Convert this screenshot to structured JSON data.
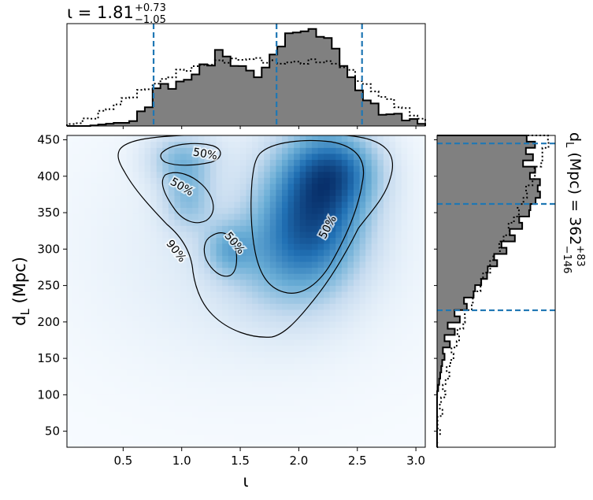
{
  "chart_data": [
    {
      "panel": "top-marginal",
      "type": "histogram",
      "title_main": "ι = 1.81",
      "title_sup": "+0.73",
      "title_sub": "−1.05",
      "xlim": [
        0.02,
        3.08
      ],
      "median": 1.81,
      "interval": [
        0.76,
        2.54
      ],
      "posterior_shape": [
        [
          0.02,
          0.0
        ],
        [
          0.2,
          0.0
        ],
        [
          0.45,
          0.03
        ],
        [
          0.55,
          0.06
        ],
        [
          0.7,
          0.15
        ],
        [
          0.8,
          0.38
        ],
        [
          0.95,
          0.42
        ],
        [
          1.05,
          0.44
        ],
        [
          1.15,
          0.54
        ],
        [
          1.25,
          0.62
        ],
        [
          1.3,
          0.8
        ],
        [
          1.4,
          0.62
        ],
        [
          1.5,
          0.57
        ],
        [
          1.6,
          0.53
        ],
        [
          1.7,
          0.52
        ],
        [
          1.8,
          0.72
        ],
        [
          1.9,
          0.84
        ],
        [
          1.95,
          0.96
        ],
        [
          2.05,
          0.94
        ],
        [
          2.15,
          0.9
        ],
        [
          2.25,
          0.84
        ],
        [
          2.35,
          0.72
        ],
        [
          2.45,
          0.44
        ],
        [
          2.55,
          0.28
        ],
        [
          2.7,
          0.16
        ],
        [
          2.85,
          0.08
        ],
        [
          3.0,
          0.05
        ],
        [
          3.08,
          0.0
        ]
      ],
      "prior_shape": [
        [
          0.02,
          0.01
        ],
        [
          0.2,
          0.06
        ],
        [
          0.4,
          0.18
        ],
        [
          0.55,
          0.28
        ],
        [
          0.7,
          0.36
        ],
        [
          0.85,
          0.45
        ],
        [
          1.0,
          0.54
        ],
        [
          1.2,
          0.6
        ],
        [
          1.4,
          0.64
        ],
        [
          1.6,
          0.66
        ],
        [
          1.8,
          0.62
        ],
        [
          2.0,
          0.62
        ],
        [
          2.2,
          0.64
        ],
        [
          2.4,
          0.58
        ],
        [
          2.55,
          0.42
        ],
        [
          2.7,
          0.3
        ],
        [
          2.85,
          0.2
        ],
        [
          3.0,
          0.1
        ],
        [
          3.08,
          0.05
        ]
      ]
    },
    {
      "panel": "main-2d-density",
      "type": "heatmap",
      "xlabel": "ι",
      "ylabel_main": "d",
      "ylabel_sub": "L",
      "ylabel_unit": " (Mpc)",
      "xlim": [
        0.02,
        3.08
      ],
      "ylim": [
        28,
        456
      ],
      "xticks": [
        "0.5",
        "1.0",
        "1.5",
        "2.0",
        "2.5",
        "3.0"
      ],
      "xtick_values": [
        0.5,
        1.0,
        1.5,
        2.0,
        2.5,
        3.0
      ],
      "yticks": [
        "50",
        "100",
        "150",
        "200",
        "250",
        "300",
        "350",
        "400",
        "450"
      ],
      "ytick_values": [
        50,
        100,
        150,
        200,
        250,
        300,
        350,
        400,
        450
      ],
      "density_peaks": [
        {
          "x": 2.15,
          "y": 365,
          "sigma_x": 0.3,
          "sigma_y": 65,
          "weight": 1.0
        },
        {
          "x": 2.35,
          "y": 410,
          "sigma_x": 0.25,
          "sigma_y": 35,
          "weight": 0.55
        },
        {
          "x": 1.0,
          "y": 425,
          "sigma_x": 0.2,
          "sigma_y": 25,
          "weight": 0.45
        },
        {
          "x": 1.05,
          "y": 370,
          "sigma_x": 0.15,
          "sigma_y": 30,
          "weight": 0.4
        },
        {
          "x": 1.4,
          "y": 300,
          "sigma_x": 0.15,
          "sigma_y": 25,
          "weight": 0.4
        },
        {
          "x": 1.9,
          "y": 290,
          "sigma_x": 0.35,
          "sigma_y": 55,
          "weight": 0.45
        },
        {
          "x": 1.6,
          "y": 300,
          "sigma_x": 0.9,
          "sigma_y": 110,
          "weight": 0.14
        }
      ],
      "contour_labels": [
        {
          "text": "50%",
          "x": 1.2,
          "y": 430,
          "angle": 10
        },
        {
          "text": "50%",
          "x": 1.0,
          "y": 385,
          "angle": 30
        },
        {
          "text": "50%",
          "x": 1.45,
          "y": 308,
          "angle": 50
        },
        {
          "text": "50%",
          "x": 2.25,
          "y": 330,
          "angle": -62
        },
        {
          "text": "90%",
          "x": 0.95,
          "y": 297,
          "angle": 52
        }
      ],
      "contour_levels": [
        "50%",
        "90%"
      ]
    },
    {
      "panel": "right-marginal",
      "type": "histogram",
      "orientation": "horizontal",
      "label_main": "d",
      "label_sub": "L",
      "label_unit": " (Mpc) = 362",
      "label_sup": "+83",
      "label_sub2": "−146",
      "ylim": [
        28,
        456
      ],
      "median": 362,
      "interval": [
        216,
        445
      ],
      "posterior_shape": [
        [
          28,
          0.0
        ],
        [
          100,
          0.0
        ],
        [
          150,
          0.05
        ],
        [
          180,
          0.1
        ],
        [
          200,
          0.14
        ],
        [
          216,
          0.2
        ],
        [
          240,
          0.3
        ],
        [
          260,
          0.4
        ],
        [
          280,
          0.48
        ],
        [
          300,
          0.56
        ],
        [
          320,
          0.64
        ],
        [
          340,
          0.72
        ],
        [
          362,
          0.82
        ],
        [
          380,
          0.88
        ],
        [
          400,
          0.82
        ],
        [
          420,
          0.76
        ],
        [
          440,
          0.8
        ],
        [
          456,
          0.78
        ]
      ],
      "prior_shape": [
        [
          28,
          0.0
        ],
        [
          60,
          0.01
        ],
        [
          100,
          0.05
        ],
        [
          150,
          0.12
        ],
        [
          200,
          0.22
        ],
        [
          250,
          0.36
        ],
        [
          300,
          0.52
        ],
        [
          350,
          0.68
        ],
        [
          400,
          0.82
        ],
        [
          430,
          0.9
        ],
        [
          456,
          0.95
        ]
      ]
    }
  ]
}
